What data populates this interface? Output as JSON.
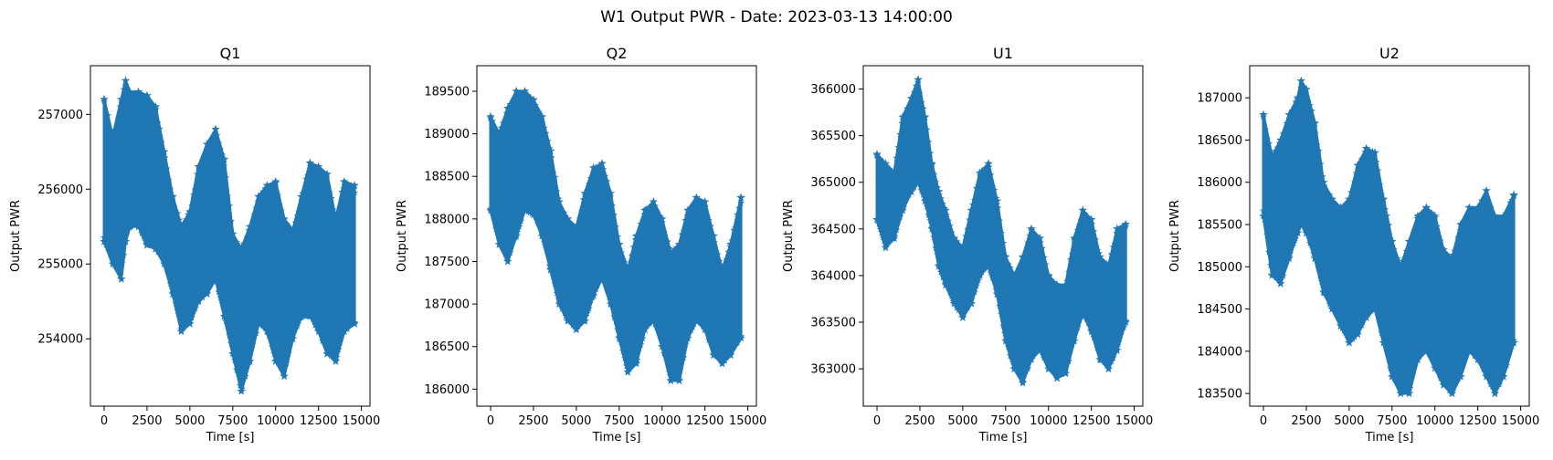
{
  "figure": {
    "suptitle": "W1 Output PWR - Date: 2023-03-13 14:00:00"
  },
  "colors": {
    "series": "#1f77b4",
    "axis": "#000000",
    "background": "#ffffff"
  },
  "chart_data": [
    {
      "type": "scatter",
      "title": "Q1",
      "xlabel": "Time [s]",
      "ylabel": "Output PWR",
      "marker": "star",
      "xlim": [
        -800,
        15500
      ],
      "ylim": [
        253100,
        257650
      ],
      "xticks": [
        0,
        2500,
        5000,
        7500,
        10000,
        12500,
        15000
      ],
      "yticks": [
        254000,
        255000,
        256000,
        257000
      ],
      "x": [
        0,
        500,
        1000,
        1250,
        1500,
        2000,
        2500,
        3000,
        3500,
        4000,
        4500,
        5000,
        5500,
        6000,
        6500,
        7000,
        7500,
        8000,
        8500,
        9000,
        9500,
        10000,
        10500,
        11000,
        11500,
        12000,
        12500,
        13000,
        13500,
        14000,
        14600
      ],
      "upper": [
        257200,
        256700,
        257200,
        257450,
        257300,
        257300,
        257250,
        257100,
        256500,
        255900,
        255500,
        255700,
        256300,
        256600,
        256800,
        256400,
        255400,
        255200,
        255500,
        255900,
        256050,
        256100,
        255600,
        255450,
        255900,
        256350,
        256300,
        256200,
        255600,
        256100,
        256050
      ],
      "lower": [
        255300,
        255000,
        254800,
        255300,
        255500,
        255500,
        255250,
        255200,
        255000,
        254600,
        254100,
        254200,
        254500,
        254600,
        254800,
        254300,
        253800,
        253300,
        253700,
        254200,
        254100,
        253700,
        253500,
        254000,
        254300,
        254300,
        254100,
        253800,
        253700,
        254100,
        254200
      ]
    },
    {
      "type": "scatter",
      "title": "Q2",
      "xlabel": "Time [s]",
      "ylabel": "Output PWR",
      "marker": "star",
      "xlim": [
        -800,
        15500
      ],
      "ylim": [
        185800,
        189800
      ],
      "xticks": [
        0,
        2500,
        5000,
        7500,
        10000,
        12500,
        15000
      ],
      "yticks": [
        186000,
        186500,
        187000,
        187500,
        188000,
        188500,
        189000,
        189500
      ],
      "x": [
        0,
        500,
        1000,
        1500,
        2000,
        2500,
        3000,
        3500,
        4000,
        4500,
        5000,
        5500,
        6000,
        6500,
        7000,
        7500,
        8000,
        8500,
        9000,
        9500,
        10000,
        10500,
        11000,
        11500,
        12000,
        12500,
        13000,
        13500,
        14000,
        14600
      ],
      "upper": [
        189200,
        189000,
        189300,
        189500,
        189500,
        189400,
        189200,
        188800,
        188200,
        188000,
        187900,
        188300,
        188600,
        188650,
        188300,
        187700,
        187400,
        187800,
        188100,
        188200,
        188000,
        187600,
        187700,
        188100,
        188250,
        188200,
        187800,
        187400,
        187700,
        188250
      ],
      "lower": [
        188100,
        187700,
        187500,
        187800,
        188100,
        188050,
        187800,
        187400,
        187000,
        186800,
        186700,
        186800,
        187100,
        187300,
        187000,
        186600,
        186200,
        186300,
        186700,
        186800,
        186500,
        186100,
        186100,
        186600,
        186800,
        186700,
        186400,
        186300,
        186400,
        186600
      ]
    },
    {
      "type": "scatter",
      "title": "U1",
      "xlabel": "Time [s]",
      "ylabel": "Output PWR",
      "marker": "star",
      "xlim": [
        -800,
        15500
      ],
      "ylim": [
        362600,
        366250
      ],
      "xticks": [
        0,
        2500,
        5000,
        7500,
        10000,
        12500,
        15000
      ],
      "yticks": [
        363000,
        363500,
        364000,
        364500,
        365000,
        365500,
        366000
      ],
      "x": [
        0,
        500,
        1000,
        1500,
        2000,
        2400,
        2800,
        3200,
        3600,
        4000,
        4500,
        5000,
        5500,
        6000,
        6500,
        7000,
        7500,
        8000,
        8500,
        9000,
        9500,
        10000,
        10500,
        11000,
        11500,
        12000,
        12500,
        13000,
        13500,
        14000,
        14500
      ],
      "upper": [
        365300,
        365200,
        365100,
        365700,
        365900,
        366100,
        365700,
        365200,
        364900,
        364700,
        364400,
        364300,
        364700,
        365100,
        365200,
        364800,
        364200,
        364000,
        364200,
        364500,
        364400,
        364000,
        363900,
        363900,
        364400,
        364700,
        364600,
        364200,
        364100,
        364500,
        364550
      ],
      "lower": [
        364600,
        364300,
        364400,
        364700,
        364900,
        365000,
        364800,
        364500,
        364100,
        363900,
        363700,
        363550,
        363700,
        364000,
        364100,
        363800,
        363300,
        363000,
        362850,
        363100,
        363200,
        363000,
        362900,
        362950,
        363300,
        363600,
        363400,
        363100,
        363000,
        363200,
        363500
      ]
    },
    {
      "type": "scatter",
      "title": "U2",
      "xlabel": "Time [s]",
      "ylabel": "Output PWR",
      "marker": "star",
      "xlim": [
        -800,
        15500
      ],
      "ylim": [
        183350,
        187380
      ],
      "xticks": [
        0,
        2500,
        5000,
        7500,
        10000,
        12500,
        15000
      ],
      "yticks": [
        183500,
        184000,
        184500,
        185000,
        185500,
        186000,
        186500,
        187000
      ],
      "x": [
        0,
        500,
        1000,
        1500,
        2000,
        2200,
        2500,
        3000,
        3500,
        4000,
        4500,
        5000,
        5500,
        6000,
        6500,
        7000,
        7500,
        8000,
        8500,
        9000,
        9500,
        10000,
        10500,
        11000,
        11500,
        12000,
        12500,
        13000,
        13500,
        14000,
        14600
      ],
      "upper": [
        186800,
        186300,
        186500,
        186800,
        187000,
        187200,
        187100,
        186700,
        186000,
        185800,
        185700,
        185800,
        186200,
        186400,
        186350,
        185800,
        185300,
        185000,
        185300,
        185600,
        185700,
        185600,
        185200,
        185100,
        185500,
        185700,
        185700,
        185900,
        185600,
        185600,
        185850
      ],
      "lower": [
        185600,
        184900,
        184800,
        185100,
        185400,
        185500,
        185400,
        185100,
        184700,
        184500,
        184300,
        184100,
        184200,
        184400,
        184500,
        184100,
        183700,
        183500,
        183500,
        183900,
        184000,
        183800,
        183600,
        183500,
        183700,
        184000,
        183900,
        183700,
        183500,
        183700,
        184100
      ]
    }
  ]
}
